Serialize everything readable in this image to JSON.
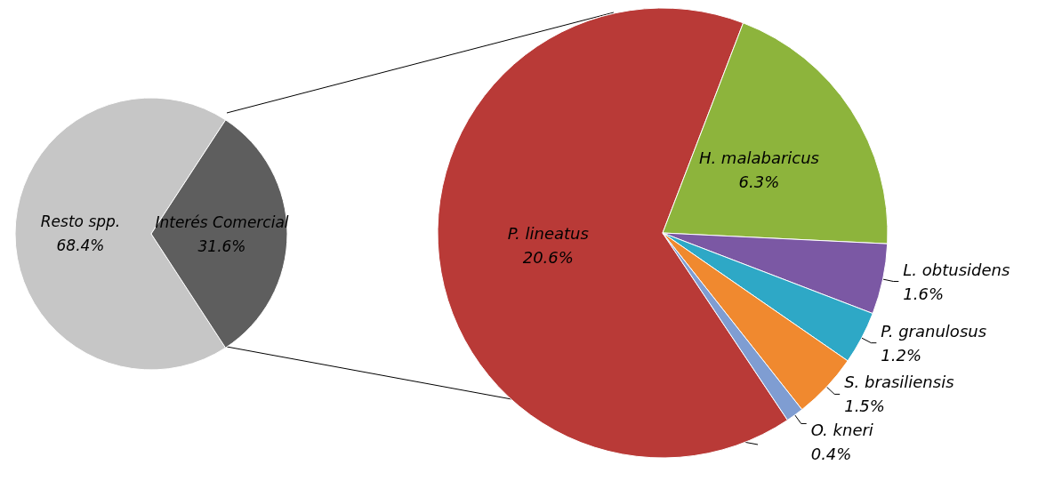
{
  "chart_data": [
    {
      "type": "pie",
      "categories": [
        "Resto spp.",
        "Interés Comercial"
      ],
      "values": [
        68.4,
        31.6
      ],
      "colors": [
        "#c6c6c6",
        "#5e5e5e"
      ],
      "value_labels": [
        "68.4%",
        "31.6%"
      ],
      "legend": false
    },
    {
      "type": "pie",
      "categories": [
        "P. lineatus",
        "H. malabaricus",
        "L. obtusidens",
        "P. granulosus",
        "S. brasiliensis",
        "O. kneri"
      ],
      "values": [
        20.6,
        6.3,
        1.6,
        1.2,
        1.5,
        0.4
      ],
      "colors": [
        "#b93a37",
        "#8db43c",
        "#7b58a4",
        "#2ea8c6",
        "#f0892f",
        "#7f9dd2"
      ],
      "value_labels": [
        "20.6%",
        "6.3%",
        "1.6%",
        "1.2%",
        "1.5%",
        "0.4%"
      ],
      "legend": false
    }
  ]
}
